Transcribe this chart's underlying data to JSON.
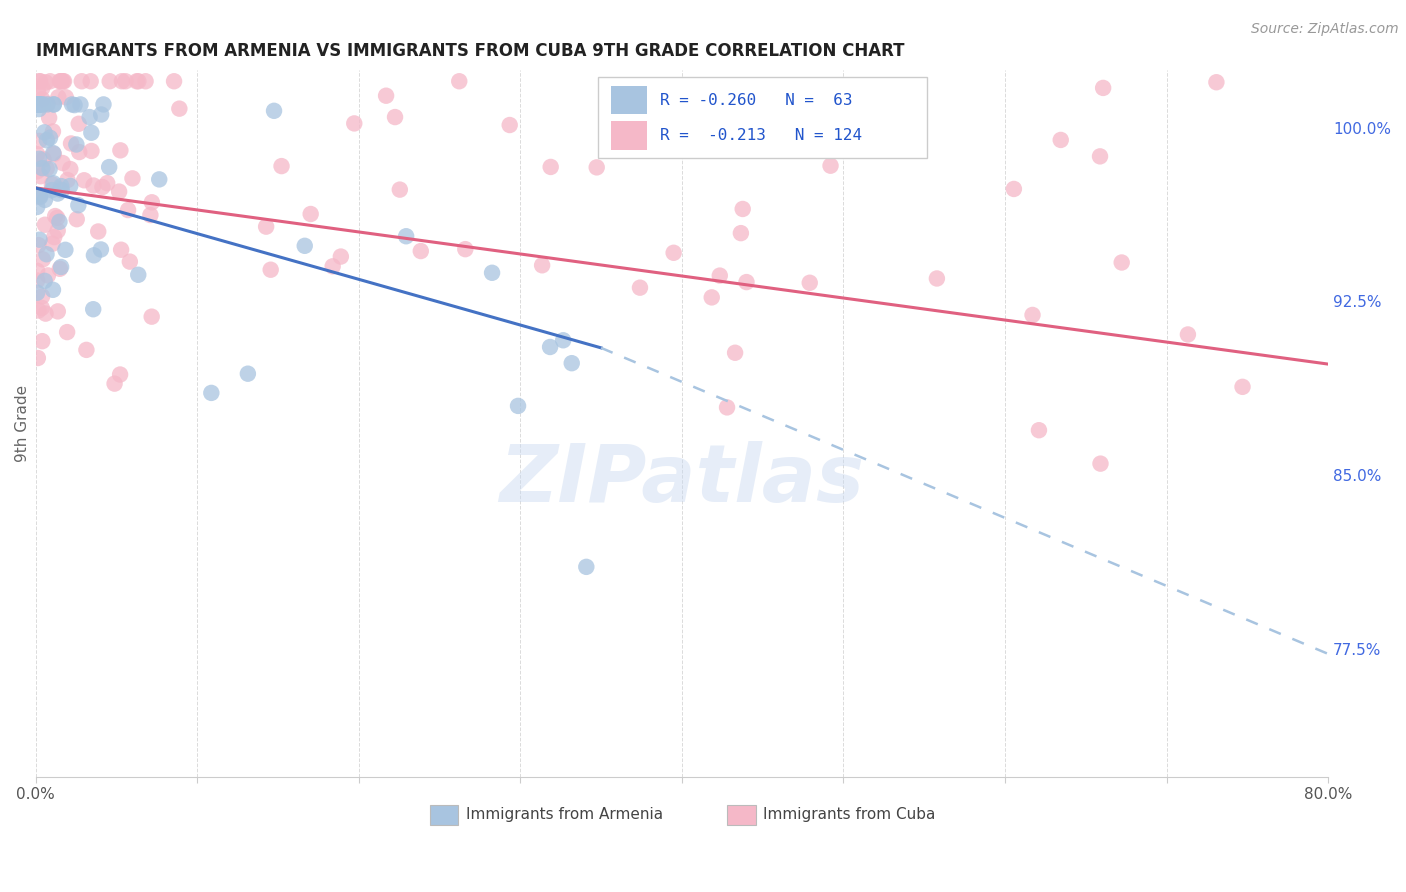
{
  "title": "IMMIGRANTS FROM ARMENIA VS IMMIGRANTS FROM CUBA 9TH GRADE CORRELATION CHART",
  "source": "Source: ZipAtlas.com",
  "ylabel": "9th Grade",
  "ylabel_right_labels": [
    "100.0%",
    "92.5%",
    "85.0%",
    "77.5%"
  ],
  "ylabel_right_values": [
    1.0,
    0.925,
    0.85,
    0.775
  ],
  "xlim": [
    0.0,
    0.8
  ],
  "ylim": [
    0.72,
    1.025
  ],
  "r_armenia": -0.26,
  "n_armenia": 63,
  "r_cuba": -0.213,
  "n_cuba": 124,
  "legend_armenia": "Immigrants from Armenia",
  "legend_cuba": "Immigrants from Cuba",
  "color_armenia": "#a8c4e0",
  "color_armenia_line": "#4472c4",
  "color_cuba": "#f5b8c8",
  "color_cuba_line": "#e06080",
  "color_dashed": "#a8c4e0",
  "color_right_axis": "#4169e1",
  "background_color": "#ffffff",
  "grid_color": "#d8d8d8",
  "arm_line_x0": 0.0,
  "arm_line_y0": 0.974,
  "arm_line_x1": 0.35,
  "arm_line_y1": 0.905,
  "dash_line_x0": 0.35,
  "dash_line_y0": 0.905,
  "dash_line_x1": 0.8,
  "dash_line_y1": 0.773,
  "cuba_line_x0": 0.0,
  "cuba_line_y0": 0.974,
  "cuba_line_x1": 0.8,
  "cuba_line_y1": 0.898
}
